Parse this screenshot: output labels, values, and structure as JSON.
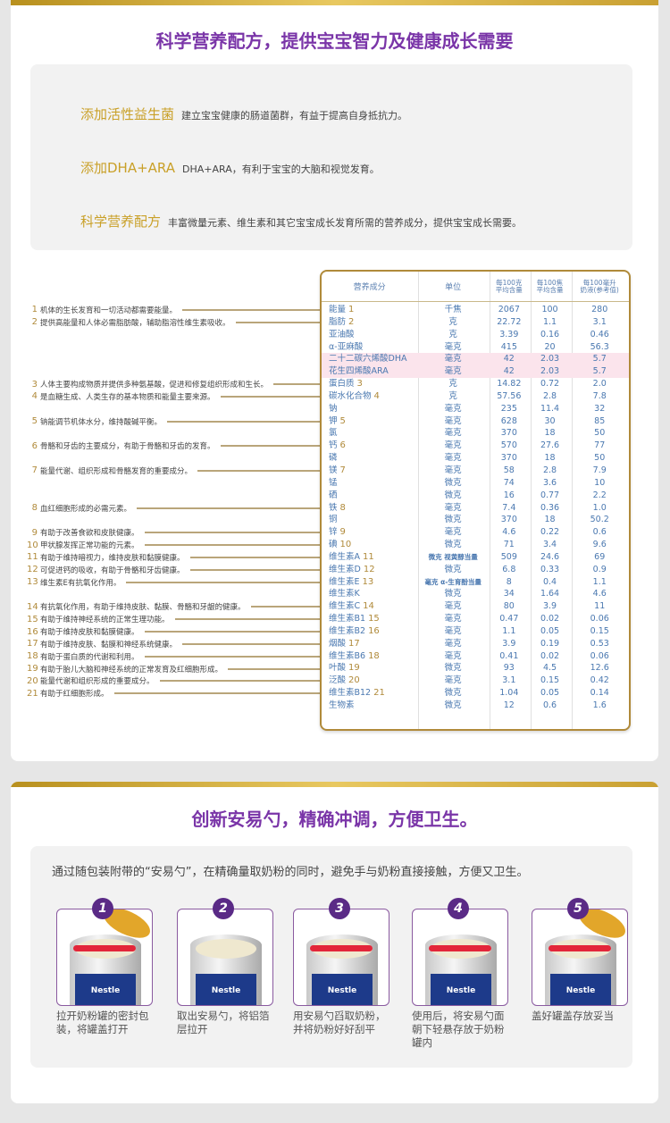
{
  "section1": {
    "title": "科学营养配方，提供宝宝智力及健康成长需要",
    "features": [
      {
        "heading": "添加活性益生菌",
        "desc": "建立宝宝健康的肠道菌群，有益于提高自身抵抗力。"
      },
      {
        "heading": "添加DHA+ARA",
        "desc": "DHA+ARA，有利于宝宝的大脑和视觉发育。"
      },
      {
        "heading": "科学营养配方",
        "desc": "丰富微量元素、维生素和其它宝宝成长发育所需的营养成分，提供宝宝成长需要。"
      }
    ],
    "table": {
      "headers": [
        "营养成分",
        "单位",
        "每100克\n平均含量",
        "每100焦\n平均含量",
        "每100毫升\n奶液(参考值)"
      ],
      "rows": [
        {
          "name": "能量",
          "num": "1",
          "unit": "千焦",
          "v": [
            "2067",
            "100",
            "280"
          ]
        },
        {
          "name": "脂肪",
          "num": "2",
          "unit": "克",
          "v": [
            "22.72",
            "1.1",
            "3.1"
          ]
        },
        {
          "name": "亚油酸",
          "unit": "克",
          "v": [
            "3.39",
            "0.16",
            "0.46"
          ]
        },
        {
          "name": "α-亚麻酸",
          "unit": "毫克",
          "v": [
            "415",
            "20",
            "56.3"
          ]
        },
        {
          "name": "二十二碳六烯酸DHA",
          "unit": "毫克",
          "v": [
            "42",
            "2.03",
            "5.7"
          ],
          "highlight": true
        },
        {
          "name": "花生四烯酸ARA",
          "unit": "毫克",
          "v": [
            "42",
            "2.03",
            "5.7"
          ],
          "highlight": true
        },
        {
          "name": "蛋白质",
          "num": "3",
          "unit": "克",
          "v": [
            "14.82",
            "0.72",
            "2.0"
          ]
        },
        {
          "name": "碳水化合物",
          "num": "4",
          "unit": "克",
          "v": [
            "57.56",
            "2.8",
            "7.8"
          ]
        },
        {
          "name": "钠",
          "unit": "毫克",
          "v": [
            "235",
            "11.4",
            "32"
          ]
        },
        {
          "name": "钾",
          "num": "5",
          "unit": "毫克",
          "v": [
            "628",
            "30",
            "85"
          ]
        },
        {
          "name": "氯",
          "unit": "毫克",
          "v": [
            "370",
            "18",
            "50"
          ]
        },
        {
          "name": "钙",
          "num": "6",
          "unit": "毫克",
          "v": [
            "570",
            "27.6",
            "77"
          ]
        },
        {
          "name": "磷",
          "unit": "毫克",
          "v": [
            "370",
            "18",
            "50"
          ]
        },
        {
          "name": "镁",
          "num": "7",
          "unit": "毫克",
          "v": [
            "58",
            "2.8",
            "7.9"
          ]
        },
        {
          "name": "锰",
          "unit": "微克",
          "v": [
            "74",
            "3.6",
            "10"
          ]
        },
        {
          "name": "硒",
          "unit": "微克",
          "v": [
            "16",
            "0.77",
            "2.2"
          ]
        },
        {
          "name": "铁",
          "num": "8",
          "unit": "毫克",
          "v": [
            "7.4",
            "0.36",
            "1.0"
          ]
        },
        {
          "name": "铜",
          "unit": "微克",
          "v": [
            "370",
            "18",
            "50.2"
          ]
        },
        {
          "name": "锌",
          "num": "9",
          "unit": "毫克",
          "v": [
            "4.6",
            "0.22",
            "0.6"
          ]
        },
        {
          "name": "碘",
          "num": "10",
          "unit": "微克",
          "v": [
            "71",
            "3.4",
            "9.6"
          ]
        },
        {
          "name": "维生素A",
          "num": "11",
          "unit": "微克 视黄醇当量",
          "v": [
            "509",
            "24.6",
            "69"
          ]
        },
        {
          "name": "维生素D",
          "num": "12",
          "unit": "微克",
          "v": [
            "6.8",
            "0.33",
            "0.9"
          ]
        },
        {
          "name": "维生素E",
          "num": "13",
          "unit": "毫克 α-生育酚当量",
          "v": [
            "8",
            "0.4",
            "1.1"
          ]
        },
        {
          "name": "维生素K",
          "unit": "微克",
          "v": [
            "34",
            "1.64",
            "4.6"
          ]
        },
        {
          "name": "维生素C",
          "num": "14",
          "unit": "毫克",
          "v": [
            "80",
            "3.9",
            "11"
          ]
        },
        {
          "name": "维生素B1",
          "num": "15",
          "unit": "毫克",
          "v": [
            "0.47",
            "0.02",
            "0.06"
          ]
        },
        {
          "name": "维生素B2",
          "num": "16",
          "unit": "毫克",
          "v": [
            "1.1",
            "0.05",
            "0.15"
          ]
        },
        {
          "name": "烟酸",
          "num": "17",
          "unit": "毫克",
          "v": [
            "3.9",
            "0.19",
            "0.53"
          ]
        },
        {
          "name": "维生素B6",
          "num": "18",
          "unit": "毫克",
          "v": [
            "0.41",
            "0.02",
            "0.06"
          ]
        },
        {
          "name": "叶酸",
          "num": "19",
          "unit": "微克",
          "v": [
            "93",
            "4.5",
            "12.6"
          ]
        },
        {
          "name": "泛酸",
          "num": "20",
          "unit": "毫克",
          "v": [
            "3.1",
            "0.15",
            "0.42"
          ]
        },
        {
          "name": "维生素B12",
          "num": "21",
          "unit": "微克",
          "v": [
            "1.04",
            "0.05",
            "0.14"
          ]
        },
        {
          "name": "生物素",
          "unit": "微克",
          "v": [
            "12",
            "0.6",
            "1.6"
          ]
        }
      ]
    },
    "annotations": [
      {
        "num": "1",
        "text": "机体的生长发育和一切活动都需要能量。"
      },
      {
        "num": "2",
        "text": "提供高能量和人体必需脂肪酸，辅助脂溶性维生素吸收。"
      },
      {
        "num": "3",
        "text": "人体主要构成物质并提供多种氨基酸，促进和修复组织形成和生长。"
      },
      {
        "num": "4",
        "text": "是血糖生成、人类生存的基本物质和能量主要来源。"
      },
      {
        "num": "5",
        "text": "钠能调节机体水分，维持酸碱平衡。"
      },
      {
        "num": "6",
        "text": "骨骼和牙齿的主要成分，有助于骨骼和牙齿的发育。"
      },
      {
        "num": "7",
        "text": "能量代谢、组织形成和骨骼发育的重要成分。"
      },
      {
        "num": "8",
        "text": "血红细胞形成的必需元素。"
      },
      {
        "num": "9",
        "text": "有助于改善食欲和皮肤健康。"
      },
      {
        "num": "10",
        "text": "甲状腺发挥正常功能的元素。"
      },
      {
        "num": "11",
        "text": "有助于维持暗视力，维持皮肤和黏膜健康。"
      },
      {
        "num": "12",
        "text": "可促进钙的吸收，有助于骨骼和牙齿健康。"
      },
      {
        "num": "13",
        "text": "维生素E有抗氧化作用。"
      },
      {
        "num": "14",
        "text": "有抗氧化作用，有助于维持皮肤、黏膜、骨骼和牙龈的健康。"
      },
      {
        "num": "15",
        "text": "有助于维持神经系统的正常生理功能。"
      },
      {
        "num": "16",
        "text": "有助于维持皮肤和黏膜健康。"
      },
      {
        "num": "17",
        "text": "有助于维持皮肤、黏膜和神经系统健康。"
      },
      {
        "num": "18",
        "text": "有助于蛋白质的代谢和利用。"
      },
      {
        "num": "19",
        "text": "有助于胎儿大脑和神经系统的正常发育及红细胞形成。"
      },
      {
        "num": "20",
        "text": "能量代谢和组织形成的重要成分。"
      },
      {
        "num": "21",
        "text": "有助于红细胞形成。"
      }
    ]
  },
  "section2": {
    "title": "创新安易勺，精确冲调，方便卫生。",
    "intro": "通过随包装附带的“安易勺”，在精确量取奶粉的同时，避免手与奶粉直接接触，方便又卫生。",
    "brand": "Nestle",
    "steps": [
      {
        "num": "1",
        "caption": "拉开奶粉罐的密封包装，将罐盖打开"
      },
      {
        "num": "2",
        "caption": "取出安易勺，将铝箔层拉开"
      },
      {
        "num": "3",
        "caption": "用安易勺舀取奶粉，并将奶粉好好刮平"
      },
      {
        "num": "4",
        "caption": "使用后，将安易勺面朝下轻悬存放于奶粉罐内"
      },
      {
        "num": "5",
        "caption": "盖好罐盖存放妥当"
      }
    ]
  },
  "colors": {
    "accent_purple": "#7a35a8",
    "gold": "#c9a028",
    "table_text": "#4a78b0",
    "highlight_row": "#fbe4ec"
  }
}
